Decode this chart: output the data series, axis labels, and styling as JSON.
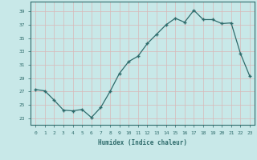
{
  "x": [
    0,
    1,
    2,
    3,
    4,
    5,
    6,
    7,
    8,
    9,
    10,
    11,
    12,
    13,
    14,
    15,
    16,
    17,
    18,
    19,
    20,
    21,
    22,
    23
  ],
  "y": [
    27.3,
    27.1,
    25.7,
    24.2,
    24.1,
    24.3,
    23.1,
    24.6,
    27.0,
    29.7,
    31.5,
    32.3,
    34.2,
    35.6,
    37.0,
    38.0,
    37.4,
    39.2,
    37.8,
    37.8,
    37.2,
    37.3,
    32.7,
    29.3
  ],
  "line_color": "#2e6b6b",
  "marker_color": "#2e6b6b",
  "bg_color": "#c8e8e8",
  "grid_color": "#b0d0d0",
  "xlabel": "Humidex (Indice chaleur)",
  "ylabel_ticks": [
    23,
    25,
    27,
    29,
    31,
    33,
    35,
    37,
    39
  ],
  "xlim": [
    -0.5,
    23.5
  ],
  "ylim": [
    22.0,
    40.5
  ]
}
